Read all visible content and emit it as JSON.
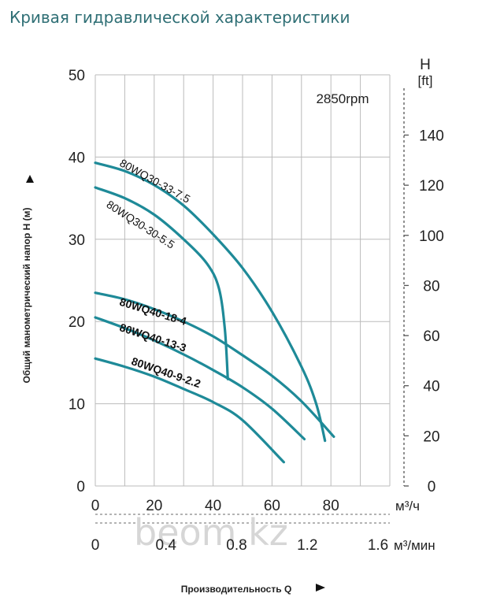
{
  "header": {
    "title": "Кривая гидравлической характеристики"
  },
  "chart_data": {
    "type": "line",
    "speed_label": "2850rpm",
    "ylabel": "Общий манометрический напор H (м)",
    "xlabel": "Производительность Q",
    "ylim": [
      0,
      50
    ],
    "y_ticks": [
      0,
      10,
      20,
      30,
      40,
      50
    ],
    "y2_label": "H",
    "y2_unit": "[ft]",
    "y2_ticks": [
      0,
      20,
      40,
      60,
      80,
      100,
      120,
      140
    ],
    "xlim": [
      0,
      100
    ],
    "x_ticks": [
      0,
      20,
      40,
      60,
      80
    ],
    "x_unit": "м³/ч",
    "x2_ticks": [
      "0",
      "0.4",
      "0.8",
      "1.2",
      "1.6"
    ],
    "x2_unit": "м³/мин",
    "grid": true,
    "watermark": "beom.kz",
    "series": [
      {
        "name": "80WQ30-33-7.5",
        "x": [
          0,
          10,
          20,
          30,
          40,
          50,
          60,
          70,
          75,
          78
        ],
        "y": [
          39.3,
          38.3,
          36.6,
          34.1,
          30.6,
          26.5,
          21.2,
          14.5,
          10.0,
          5.5
        ],
        "label_x": 8,
        "label_y": 39,
        "label_angle": 29
      },
      {
        "name": "80WQ30-30-5.5",
        "x": [
          0,
          10,
          20,
          30,
          38,
          42,
          44,
          45
        ],
        "y": [
          36.3,
          35.0,
          33.0,
          30.0,
          27.0,
          24.0,
          19.0,
          13.0
        ],
        "label_x": 3.5,
        "label_y": 34,
        "label_angle": 33
      },
      {
        "name": "80WQ40-18-4",
        "x": [
          0,
          10,
          20,
          30,
          40,
          50,
          60,
          70,
          81
        ],
        "y": [
          23.5,
          22.7,
          21.5,
          20.0,
          18.2,
          15.9,
          13.4,
          10.3,
          6.0
        ],
        "label_x": 8,
        "label_y": 22,
        "label_angle": 17
      },
      {
        "name": "80WQ40-13-3",
        "x": [
          0,
          10,
          20,
          30,
          40,
          50,
          60,
          71
        ],
        "y": [
          20.5,
          19.2,
          17.7,
          16.0,
          14.1,
          12.0,
          9.4,
          5.7
        ],
        "label_x": 8,
        "label_y": 18.9,
        "label_angle": 18
      },
      {
        "name": "80WQ40-9-2.2",
        "x": [
          0,
          10,
          20,
          30,
          40,
          50,
          64
        ],
        "y": [
          15.5,
          14.5,
          13.3,
          11.8,
          10.2,
          8.0,
          2.9
        ],
        "label_x": 12,
        "label_y": 14.8,
        "label_angle": 19
      }
    ]
  }
}
